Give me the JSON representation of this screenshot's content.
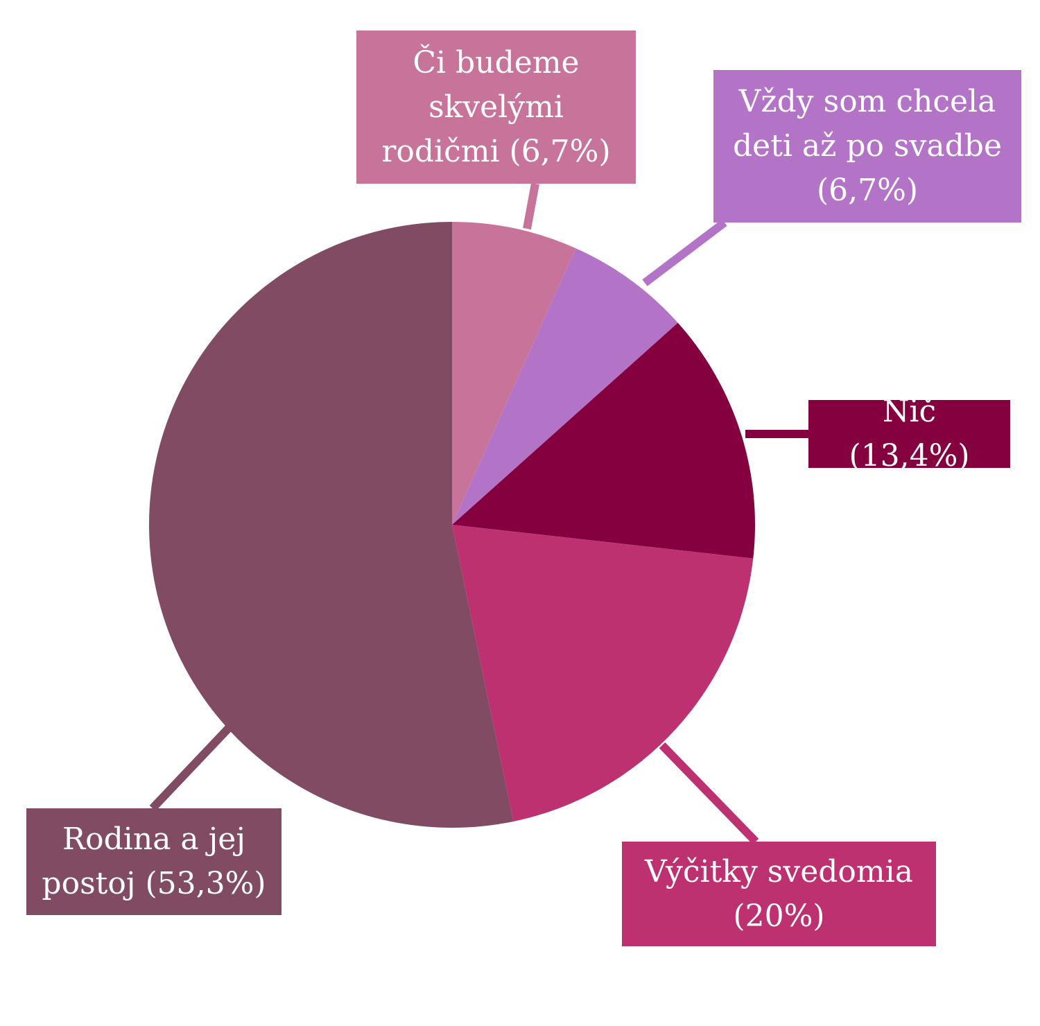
{
  "chart_data": {
    "type": "pie",
    "categories": [
      "Či budeme skvelými rodičmi",
      "Vždy som chcela deti až po svadbe",
      "Nič",
      "Výčitky svedomia",
      "Rodina a jej postoj"
    ],
    "values": [
      6.7,
      6.7,
      13.4,
      20,
      53.3
    ],
    "value_labels": [
      "(6,7%)",
      "(6,7%)",
      "(13,4%)",
      "(20%)",
      "(53,3%)"
    ],
    "colors": [
      "#c87399",
      "#b373c6",
      "#85003f",
      "#bd3170",
      "#824b64"
    ]
  }
}
